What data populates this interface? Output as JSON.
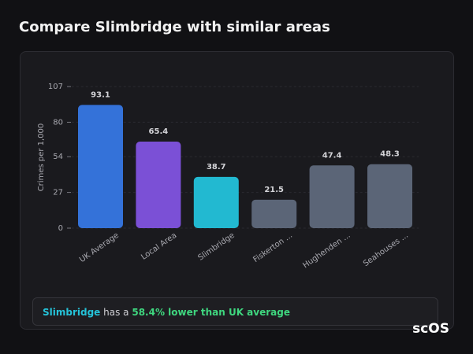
{
  "header": {
    "title": "Compare Slimbridge with similar areas"
  },
  "chart_data": {
    "type": "bar",
    "y_label": "Crimes per 1,000",
    "categories": [
      "UK Average",
      "Local Area",
      "Slimbridge",
      "Fiskerton ...",
      "Hughenden ...",
      "Seahouses ..."
    ],
    "values": [
      93.1,
      65.4,
      38.7,
      21.5,
      47.4,
      48.3
    ],
    "colors": [
      "#3472d9",
      "#7b50d6",
      "#22b9d1",
      "#5b6577",
      "#5b6577",
      "#5b6577"
    ],
    "ylim": [
      0,
      107
    ],
    "yticks": [
      0,
      27,
      54,
      80,
      107
    ],
    "grid": true
  },
  "summary": {
    "area": "Slimbridge",
    "text": "has a",
    "highlight": "58.4% lower than UK average"
  },
  "logo": "scOS"
}
